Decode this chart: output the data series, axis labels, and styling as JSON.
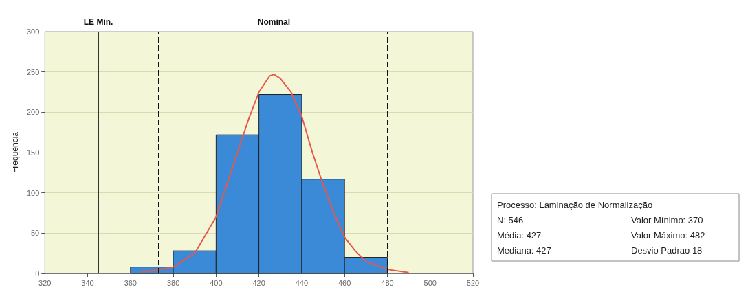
{
  "chart_data": {
    "type": "histogram",
    "xlabel": null,
    "ylabel": "Frequência",
    "bins": [
      360,
      380,
      400,
      420,
      440,
      460,
      480
    ],
    "values": [
      8,
      28,
      172,
      222,
      117,
      20
    ],
    "color": "#3a8ad8",
    "series": [
      {
        "type": "line",
        "color": "#e8574c",
        "x": [
          365,
          372,
          380,
          390,
          400,
          410,
          415,
          420,
          425,
          427,
          430,
          435,
          440,
          445,
          450,
          455,
          460,
          465,
          470,
          480,
          490
        ],
        "values": [
          2,
          4,
          8,
          25,
          70,
          150,
          190,
          225,
          245,
          247,
          242,
          225,
          195,
          150,
          110,
          75,
          45,
          28,
          15,
          5,
          1
        ]
      }
    ],
    "marker": "none",
    "xlim": [
      320,
      520
    ],
    "xticks": [
      320,
      340,
      360,
      380,
      400,
      420,
      440,
      460,
      480,
      500,
      520
    ],
    "ylim": [
      0,
      300
    ],
    "yticks": [
      0,
      50,
      100,
      150,
      200,
      250,
      300
    ],
    "grid": "y",
    "ref_lines": [
      {
        "axis": "x",
        "value": 345,
        "label": "LE Mín.",
        "line_style": "solid",
        "color": "#333333"
      },
      {
        "axis": "x",
        "value": 373,
        "label": null,
        "line_style": "dashed",
        "color": "#111111"
      },
      {
        "axis": "x",
        "value": 427,
        "label": "Nominal",
        "line_style": "solid",
        "color": "#333333"
      },
      {
        "axis": "x",
        "value": 480,
        "label": null,
        "line_style": "dashed",
        "color": "#111111"
      }
    ],
    "annotations": [
      "Processo: Laminação de Normalização",
      "N: 546",
      "Média: 427",
      "Mediana: 427",
      "Valor Mínimo: 370",
      "Valor Máximo: 482",
      "Desvio Padrao 18"
    ]
  }
}
